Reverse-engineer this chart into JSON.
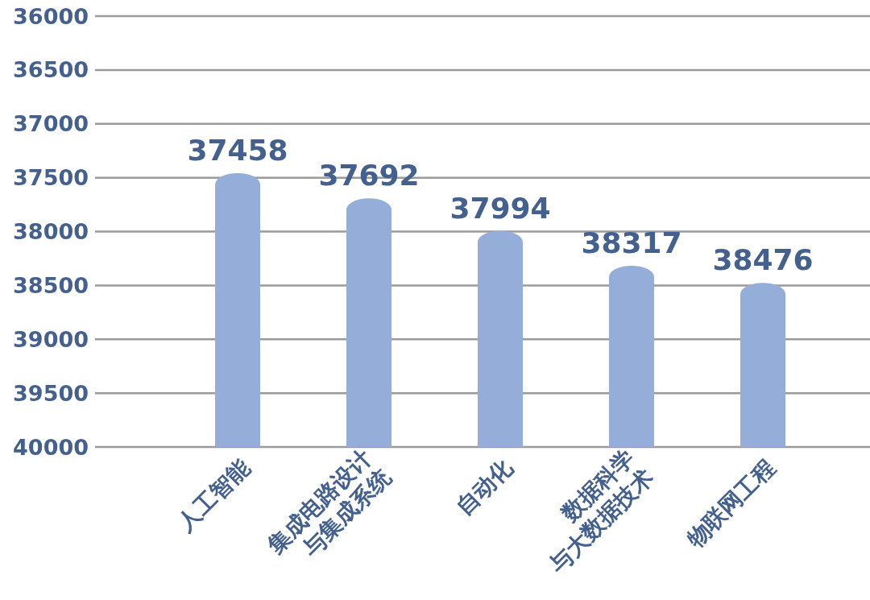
{
  "chart_data": {
    "type": "bar",
    "categories": [
      "人工智能",
      "集成电路设计\n与集成系统",
      "自动化",
      "数据科学\n与大数据技术",
      "物联网工程"
    ],
    "base": [
      40000,
      40000,
      40000,
      40000,
      40000
    ],
    "values": [
      -2542,
      -2308,
      -2006,
      -1683,
      -1524
    ],
    "value_labels": [
      "37458",
      "37692",
      "37994",
      "38317",
      "38476"
    ],
    "color": "#94aed9",
    "ylim": [
      40000,
      36000
    ],
    "yticks": [
      36000,
      36500,
      37000,
      37500,
      38000,
      38500,
      39000,
      39500,
      40000
    ],
    "grid": "y"
  }
}
